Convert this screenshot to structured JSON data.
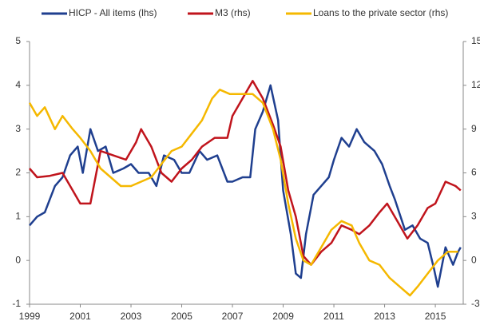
{
  "chart_data": {
    "type": "line",
    "xlim": [
      1999,
      2016.1
    ],
    "xticks": [
      1999,
      2001,
      2003,
      2005,
      2007,
      2009,
      2011,
      2013,
      2015
    ],
    "ylim": [
      -1,
      5
    ],
    "yticks": [
      -1,
      0,
      1,
      2,
      3,
      4,
      5
    ],
    "y2lim": [
      -3,
      15
    ],
    "y2ticks": [
      -3,
      0,
      3,
      6,
      9,
      12,
      15
    ],
    "legend": "top",
    "series": [
      {
        "name": "HICP - All items (lhs)",
        "color": "#1f3f8f",
        "x": [
          1999.0,
          1999.3,
          1999.6,
          2000.0,
          2000.3,
          2000.6,
          2000.9,
          2001.1,
          2001.4,
          2001.7,
          2002.0,
          2002.3,
          2002.7,
          2003.0,
          2003.3,
          2003.7,
          2004.0,
          2004.3,
          2004.7,
          2005.0,
          2005.3,
          2005.7,
          2006.0,
          2006.4,
          2006.8,
          2007.0,
          2007.4,
          2007.7,
          2007.9,
          2008.2,
          2008.5,
          2008.8,
          2009.0,
          2009.3,
          2009.5,
          2009.7,
          2009.9,
          2010.2,
          2010.5,
          2010.8,
          2011.0,
          2011.3,
          2011.6,
          2011.9,
          2012.2,
          2012.6,
          2012.9,
          2013.2,
          2013.4,
          2013.8,
          2014.1,
          2014.4,
          2014.7,
          2014.95,
          2015.1,
          2015.4,
          2015.7,
          2015.9,
          2016.0
        ],
        "values": [
          0.8,
          1.0,
          1.1,
          1.7,
          1.9,
          2.4,
          2.6,
          2.0,
          3.0,
          2.5,
          2.6,
          2.0,
          2.1,
          2.2,
          2.0,
          2.0,
          1.7,
          2.4,
          2.3,
          2.0,
          2.0,
          2.5,
          2.3,
          2.4,
          1.8,
          1.8,
          1.9,
          1.9,
          3.0,
          3.4,
          4.0,
          3.2,
          1.6,
          0.6,
          -0.3,
          -0.4,
          0.6,
          1.5,
          1.7,
          1.9,
          2.3,
          2.8,
          2.6,
          3.0,
          2.7,
          2.5,
          2.2,
          1.7,
          1.4,
          0.7,
          0.8,
          0.5,
          0.4,
          -0.2,
          -0.6,
          0.3,
          -0.1,
          0.2,
          0.3
        ]
      },
      {
        "name": "M3 (rhs)",
        "color": "#c0141c",
        "axis": "y2",
        "x": [
          1999.0,
          1999.3,
          1999.8,
          2000.3,
          2000.7,
          2001.0,
          2001.4,
          2001.8,
          2002.3,
          2002.8,
          2003.2,
          2003.4,
          2003.8,
          2004.2,
          2004.6,
          2005.0,
          2005.4,
          2005.8,
          2006.3,
          2006.8,
          2007.0,
          2007.4,
          2007.8,
          2008.2,
          2008.6,
          2008.9,
          2009.2,
          2009.5,
          2009.8,
          2010.1,
          2010.5,
          2010.9,
          2011.3,
          2011.7,
          2012.0,
          2012.4,
          2012.8,
          2013.1,
          2013.5,
          2013.9,
          2014.3,
          2014.7,
          2015.0,
          2015.4,
          2015.8,
          2016.0
        ],
        "values": [
          6.3,
          5.7,
          5.8,
          6.0,
          4.8,
          3.9,
          3.9,
          7.5,
          7.2,
          6.9,
          8.1,
          9.0,
          7.8,
          6.0,
          5.4,
          6.3,
          6.9,
          7.8,
          8.4,
          8.4,
          9.9,
          11.1,
          12.3,
          11.1,
          9.3,
          7.8,
          4.8,
          3.0,
          0.3,
          -0.3,
          0.6,
          1.2,
          2.4,
          2.1,
          1.8,
          2.4,
          3.3,
          3.9,
          2.7,
          1.5,
          2.4,
          3.6,
          3.9,
          5.4,
          5.1,
          4.8
        ]
      },
      {
        "name": "Loans to the private sector (rhs)",
        "color": "#f5b800",
        "axis": "y2",
        "x": [
          1999.0,
          1999.3,
          1999.6,
          2000.0,
          2000.3,
          2000.7,
          2001.0,
          2001.4,
          2001.8,
          2002.2,
          2002.6,
          2003.0,
          2003.4,
          2003.8,
          2004.2,
          2004.6,
          2005.0,
          2005.4,
          2005.8,
          2006.2,
          2006.5,
          2006.9,
          2007.3,
          2007.8,
          2008.2,
          2008.6,
          2008.9,
          2009.2,
          2009.5,
          2009.8,
          2010.1,
          2010.5,
          2010.9,
          2011.3,
          2011.7,
          2012.0,
          2012.4,
          2012.8,
          2013.2,
          2013.6,
          2014.0,
          2014.3,
          2014.7,
          2015.1,
          2015.5,
          2015.9
        ],
        "values": [
          10.8,
          9.9,
          10.5,
          9.0,
          9.9,
          9.0,
          8.4,
          7.5,
          6.3,
          5.7,
          5.1,
          5.1,
          5.4,
          5.7,
          6.6,
          7.5,
          7.8,
          8.7,
          9.6,
          11.1,
          11.7,
          11.4,
          11.4,
          11.4,
          10.8,
          9.0,
          6.9,
          3.9,
          1.5,
          0.0,
          -0.3,
          0.9,
          2.1,
          2.7,
          2.4,
          1.2,
          0.0,
          -0.3,
          -1.2,
          -1.8,
          -2.4,
          -1.8,
          -0.9,
          0.0,
          0.6,
          0.6
        ]
      }
    ]
  }
}
